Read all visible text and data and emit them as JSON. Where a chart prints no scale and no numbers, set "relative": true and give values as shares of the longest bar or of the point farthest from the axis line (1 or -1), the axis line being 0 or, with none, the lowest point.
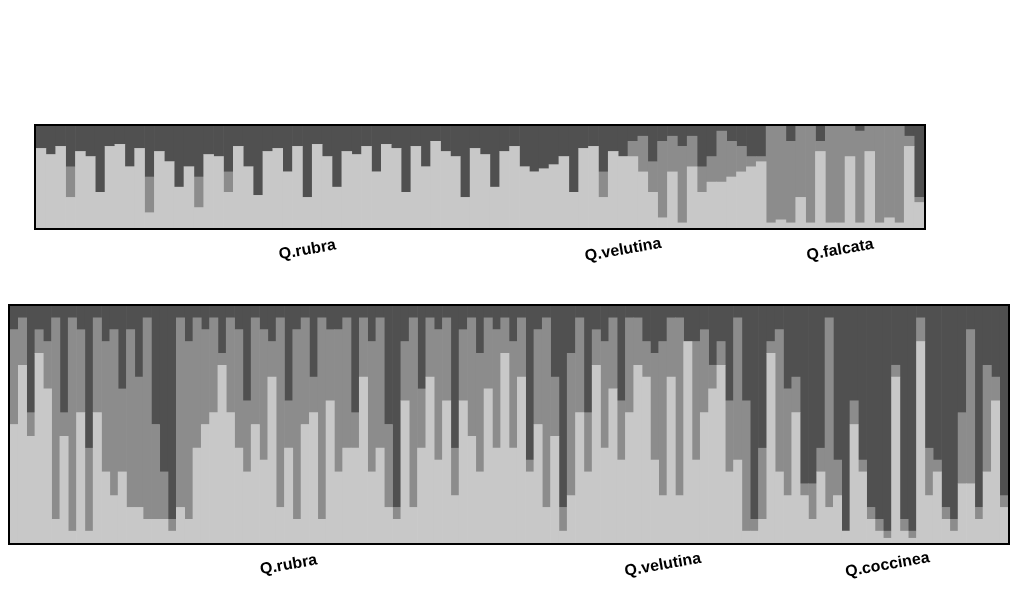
{
  "chart_data": [
    {
      "type": "bar",
      "stacked": true,
      "relative": true,
      "legend": false,
      "categories": [
        null,
        null,
        null,
        null,
        null,
        null,
        null,
        null,
        null,
        null,
        null,
        null,
        null,
        null,
        null,
        null,
        null,
        null,
        null,
        null,
        null,
        null,
        null,
        null,
        null,
        null,
        null,
        "Q.rubra",
        null,
        null,
        null,
        null,
        null,
        null,
        null,
        null,
        null,
        null,
        null,
        null,
        null,
        null,
        null,
        null,
        null,
        null,
        null,
        null,
        null,
        null,
        null,
        null,
        null,
        null,
        null,
        null,
        null,
        null,
        null,
        "Q.velutina",
        null,
        null,
        null,
        null,
        null,
        null,
        null,
        null,
        null,
        null,
        null,
        null,
        null,
        null,
        null,
        null,
        null,
        null,
        null,
        null,
        null,
        "Q.falcata",
        null,
        null,
        null,
        null,
        null,
        null,
        null,
        null
      ],
      "series": [
        {
          "color": "#c8c8c8",
          "values": [
            0.78,
            0.72,
            0.8,
            0.3,
            0.75,
            0.7,
            0.35,
            0.8,
            0.82,
            0.6,
            0.78,
            0.15,
            0.75,
            0.65,
            0.4,
            0.6,
            0.2,
            0.72,
            0.7,
            0.35,
            0.8,
            0.6,
            0.32,
            0.75,
            0.78,
            0.55,
            0.8,
            0.3,
            0.82,
            0.7,
            0.4,
            0.75,
            0.72,
            0.8,
            0.55,
            0.82,
            0.78,
            0.35,
            0.8,
            0.6,
            0.85,
            0.75,
            0.7,
            0.3,
            0.78,
            0.72,
            0.4,
            0.75,
            0.8,
            0.6,
            0.55,
            0.58,
            0.62,
            0.7,
            0.35,
            0.78,
            0.8,
            0.3,
            0.75,
            0.7,
            0.7,
            0.55,
            0.35,
            0.1,
            0.55,
            0.05,
            0.6,
            0.35,
            0.45,
            0.45,
            0.5,
            0.55,
            0.6,
            0.65,
            0.05,
            0.08,
            0.05,
            0.3,
            0.05,
            0.75,
            0.05,
            0.05,
            0.7,
            0.05,
            0.75,
            0.05,
            0.1,
            0.05,
            0.8,
            0.25
          ]
        },
        {
          "color": "#8c8c8c",
          "values": [
            0,
            0,
            0,
            0.3,
            0,
            0,
            0,
            0,
            0,
            0,
            0,
            0.35,
            0,
            0,
            0,
            0,
            0.3,
            0,
            0,
            0.2,
            0,
            0,
            0,
            0,
            0,
            0,
            0,
            0,
            0,
            0,
            0,
            0,
            0,
            0,
            0,
            0,
            0,
            0,
            0,
            0,
            0,
            0,
            0,
            0,
            0,
            0,
            0,
            0,
            0,
            0,
            0,
            0,
            0,
            0,
            0,
            0,
            0,
            0.25,
            0,
            0,
            0.15,
            0.35,
            0.3,
            0.75,
            0.35,
            0.75,
            0.3,
            0.25,
            0.25,
            0.5,
            0.35,
            0.25,
            0.1,
            0.05,
            0.95,
            0.92,
            0.8,
            0.7,
            0.95,
            0.1,
            0.95,
            0.95,
            0.3,
            0.9,
            0.25,
            0.95,
            0.9,
            0.95,
            0.1,
            0.05
          ]
        },
        {
          "color": "#505050",
          "values": [
            0.22,
            0.28,
            0.2,
            0.4,
            0.25,
            0.3,
            0.65,
            0.2,
            0.18,
            0.4,
            0.22,
            0.5,
            0.25,
            0.35,
            0.6,
            0.4,
            0.5,
            0.28,
            0.3,
            0.45,
            0.2,
            0.4,
            0.68,
            0.25,
            0.22,
            0.45,
            0.2,
            0.7,
            0.18,
            0.3,
            0.6,
            0.25,
            0.28,
            0.2,
            0.45,
            0.18,
            0.22,
            0.65,
            0.2,
            0.4,
            0.15,
            0.25,
            0.3,
            0.7,
            0.22,
            0.28,
            0.6,
            0.25,
            0.2,
            0.4,
            0.45,
            0.42,
            0.38,
            0.3,
            0.65,
            0.22,
            0.2,
            0.45,
            0.25,
            0.3,
            0.15,
            0.1,
            0.35,
            0.15,
            0.1,
            0.2,
            0.1,
            0.4,
            0.3,
            0.05,
            0.15,
            0.2,
            0.3,
            0.3,
            0,
            0,
            0.15,
            0,
            0,
            0.15,
            0,
            0,
            0,
            0.05,
            0,
            0,
            0,
            0,
            0.1,
            0.7
          ]
        }
      ]
    },
    {
      "type": "bar",
      "stacked": true,
      "relative": true,
      "legend": false,
      "categories": [
        null,
        null,
        null,
        null,
        null,
        null,
        null,
        null,
        null,
        null,
        null,
        null,
        null,
        null,
        null,
        null,
        null,
        null,
        null,
        null,
        null,
        null,
        null,
        null,
        null,
        null,
        null,
        null,
        null,
        null,
        null,
        null,
        null,
        "Q.rubra",
        null,
        null,
        null,
        null,
        null,
        null,
        null,
        null,
        null,
        null,
        null,
        null,
        null,
        null,
        null,
        null,
        null,
        null,
        null,
        null,
        null,
        null,
        null,
        null,
        null,
        null,
        null,
        null,
        null,
        null,
        null,
        null,
        null,
        null,
        null,
        null,
        null,
        null,
        null,
        null,
        null,
        null,
        null,
        null,
        "Q.velutina",
        null,
        null,
        null,
        null,
        null,
        null,
        null,
        null,
        null,
        null,
        null,
        null,
        null,
        null,
        null,
        null,
        null,
        null,
        null,
        null,
        null,
        null,
        null,
        null,
        null,
        null,
        "Q.coccinea",
        null,
        null,
        null,
        null,
        null,
        null,
        null,
        null,
        null,
        null,
        null,
        null,
        null,
        null
      ],
      "series": [
        {
          "color": "#c8c8c8",
          "values": [
            0.5,
            0.75,
            0.45,
            0.8,
            0.65,
            0.1,
            0.45,
            0.05,
            0.55,
            0.05,
            0.55,
            0.3,
            0.2,
            0.3,
            0.15,
            0.15,
            0.1,
            0.1,
            0.1,
            0.05,
            0.15,
            0.1,
            0.4,
            0.5,
            0.55,
            0.75,
            0.55,
            0.4,
            0.3,
            0.5,
            0.35,
            0.7,
            0.15,
            0.4,
            0.1,
            0.5,
            0.55,
            0.1,
            0.6,
            0.3,
            0.4,
            0.4,
            0.7,
            0.3,
            0.4,
            0.15,
            0.1,
            0.6,
            0.15,
            0.4,
            0.7,
            0.35,
            0.6,
            0.2,
            0.6,
            0.45,
            0.3,
            0.65,
            0.4,
            0.8,
            0.4,
            0.7,
            0.3,
            0.5,
            0.15,
            0.45,
            0.05,
            0.2,
            0.55,
            0.3,
            0.75,
            0.4,
            0.65,
            0.35,
            0.55,
            0.75,
            0.7,
            0.35,
            0.2,
            0.7,
            0.2,
            0.85,
            0.35,
            0.55,
            0.65,
            0.75,
            0.3,
            0.35,
            0.05,
            0.05,
            0.1,
            0.8,
            0.3,
            0.2,
            0.55,
            0.2,
            0.1,
            0.3,
            0.15,
            0.2,
            0.05,
            0.5,
            0.3,
            0.1,
            0.05,
            0.02,
            0.7,
            0.05,
            0.02,
            0.85,
            0.2,
            0.3,
            0.1,
            0.05,
            0.25,
            0.25,
            0.1,
            0.3,
            0.6,
            0.15
          ]
        },
        {
          "color": "#8c8c8c",
          "values": [
            0.4,
            0.2,
            0.1,
            0.1,
            0.2,
            0.85,
            0.1,
            0.9,
            0.35,
            0.35,
            0.4,
            0.55,
            0.7,
            0.35,
            0.75,
            0.55,
            0.85,
            0.4,
            0.2,
            0.05,
            0.8,
            0.75,
            0.55,
            0.4,
            0.4,
            0.05,
            0.4,
            0.5,
            0.3,
            0.45,
            0.55,
            0.15,
            0.8,
            0.2,
            0.8,
            0.45,
            0.15,
            0.85,
            0.3,
            0.6,
            0.55,
            0.15,
            0.25,
            0.55,
            0.55,
            0.35,
            0.05,
            0.25,
            0.8,
            0.25,
            0.25,
            0.55,
            0.35,
            0.2,
            0.3,
            0.5,
            0.5,
            0.3,
            0.5,
            0.15,
            0.45,
            0.25,
            0.05,
            0.4,
            0.8,
            0.25,
            0.1,
            0.6,
            0.4,
            0.25,
            0.15,
            0.45,
            0.3,
            0.25,
            0.4,
            0.2,
            0.15,
            0.45,
            0.65,
            0.25,
            0.75,
            0,
            0.5,
            0.35,
            0.1,
            0.1,
            0.3,
            0.6,
            0.55,
            0.05,
            0.3,
            0.05,
            0.6,
            0.45,
            0.15,
            0.05,
            0.15,
            0.1,
            0.8,
            0.15,
            0,
            0.1,
            0.05,
            0.05,
            0.05,
            0.03,
            0.05,
            0.05,
            0.03,
            0.1,
            0.2,
            0.05,
            0.05,
            0.05,
            0.3,
            0.65,
            0.05,
            0.45,
            0.1,
            0.05
          ]
        },
        {
          "color": "#505050",
          "values": [
            0.1,
            0.05,
            0.45,
            0.1,
            0.15,
            0.05,
            0.45,
            0.05,
            0.1,
            0.6,
            0.05,
            0.15,
            0.1,
            0.35,
            0.1,
            0.3,
            0.05,
            0.5,
            0.7,
            0.9,
            0.05,
            0.15,
            0.05,
            0.1,
            0.05,
            0.2,
            0.05,
            0.1,
            0.4,
            0.05,
            0.1,
            0.15,
            0.05,
            0.4,
            0.1,
            0.05,
            0.3,
            0.05,
            0.1,
            0.1,
            0.05,
            0.45,
            0.05,
            0.15,
            0.05,
            0.5,
            0.85,
            0.15,
            0.05,
            0.35,
            0.05,
            0.1,
            0.05,
            0.6,
            0.1,
            0.05,
            0.2,
            0.05,
            0.1,
            0.05,
            0.15,
            0.05,
            0.65,
            0.1,
            0.05,
            0.3,
            0.85,
            0.2,
            0.05,
            0.45,
            0.1,
            0.15,
            0.05,
            0.4,
            0.05,
            0.05,
            0.15,
            0.2,
            0.15,
            0.05,
            0.05,
            0.15,
            0.15,
            0.1,
            0.25,
            0.15,
            0.4,
            0.05,
            0.4,
            0.9,
            0.6,
            0.15,
            0.1,
            0.35,
            0.3,
            0.75,
            0.75,
            0.6,
            0.05,
            0.65,
            0.95,
            0.4,
            0.65,
            0.85,
            0.9,
            0.95,
            0.25,
            0.9,
            0.95,
            0.05,
            0.6,
            0.65,
            0.85,
            0.9,
            0.45,
            0.1,
            0.85,
            0.25,
            0.3,
            0.8
          ]
        }
      ]
    }
  ]
}
